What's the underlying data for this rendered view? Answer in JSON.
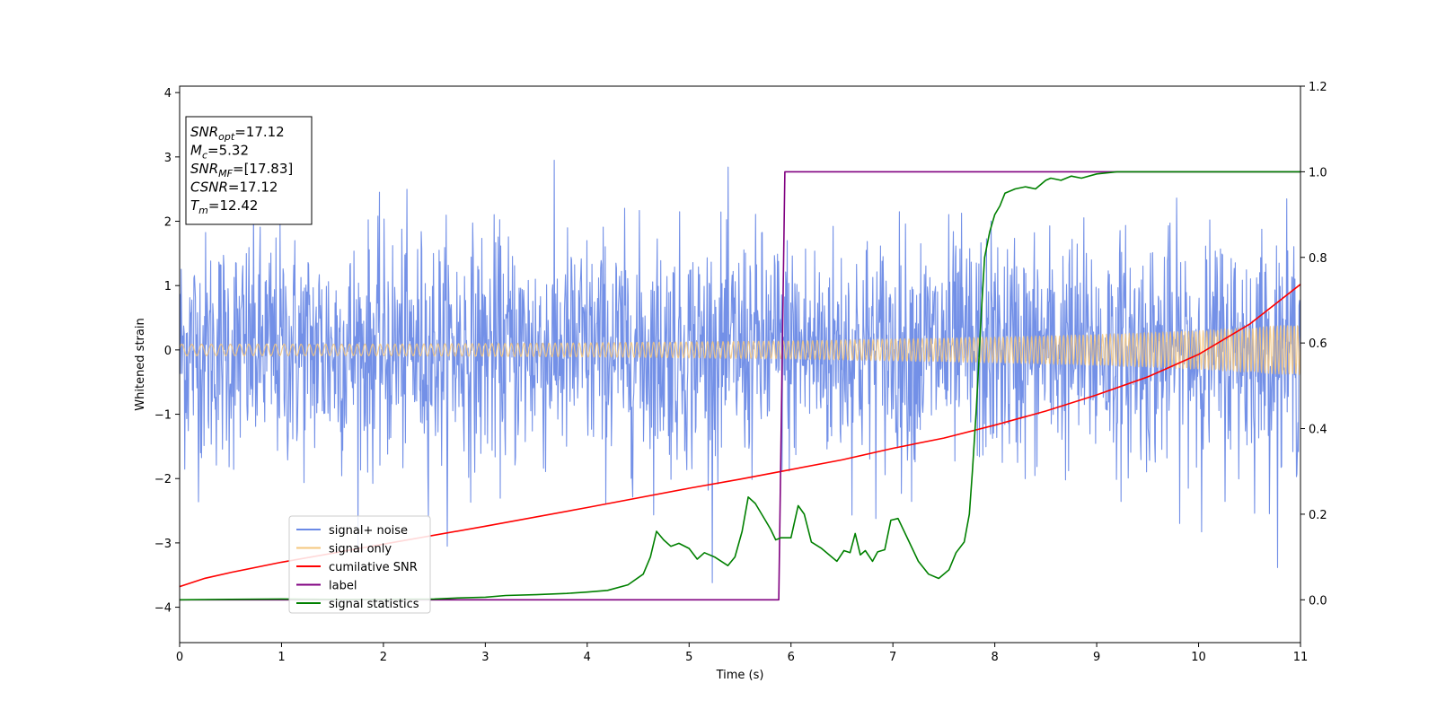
{
  "chart_data": {
    "type": "line",
    "title": "",
    "xlabel": "Time (s)",
    "ylabel": "Whitened strain",
    "xlim": [
      0,
      11
    ],
    "ylim": [
      -4.55,
      4.1
    ],
    "y2lim": [
      -0.1,
      1.2
    ],
    "x_ticks": [
      0,
      1,
      2,
      3,
      4,
      5,
      6,
      7,
      8,
      9,
      10,
      11
    ],
    "x_tick_labels": [
      "0",
      "1",
      "2",
      "3",
      "4",
      "5",
      "6",
      "7",
      "8",
      "9",
      "10",
      "11"
    ],
    "y_ticks": [
      -4,
      -3,
      -2,
      -1,
      0,
      1,
      2,
      3,
      4
    ],
    "y_tick_labels": [
      "−4",
      "−3",
      "−2",
      "−1",
      "0",
      "1",
      "2",
      "3",
      "4"
    ],
    "y2_ticks": [
      0.0,
      0.2,
      0.4,
      0.6,
      0.8,
      1.0,
      1.2
    ],
    "y2_tick_labels": [
      "0.0",
      "0.2",
      "0.4",
      "0.6",
      "0.8",
      "1.0",
      "1.2"
    ],
    "grid": false,
    "legend_position": "lower-left",
    "annotation": {
      "lines": [
        {
          "base": "SNR",
          "sub": "opt",
          "rest": "=17.12"
        },
        {
          "base": "M",
          "sub": "c",
          "rest": "=5.32"
        },
        {
          "base": "SNR",
          "sub": "MF",
          "rest": "=[17.83]"
        },
        {
          "base": "CSNR",
          "sub": "",
          "rest": "=17.12"
        },
        {
          "base": "T",
          "sub": "m",
          "rest": "=12.42"
        }
      ]
    },
    "series": [
      {
        "name": "signal+ noise",
        "color": "#6b8ae6",
        "axis": "left",
        "noise": {
          "std": 0.9,
          "max_amplitude": 4.1,
          "n_samples": 2200
        }
      },
      {
        "name": "signal only",
        "color": "#f5c77e",
        "axis": "left",
        "chirp": {
          "envelope": [
            [
              0,
              0.09
            ],
            [
              2,
              0.09
            ],
            [
              4,
              0.11
            ],
            [
              6,
              0.14
            ],
            [
              8,
              0.2
            ],
            [
              9,
              0.24
            ],
            [
              10,
              0.3
            ],
            [
              11,
              0.4
            ]
          ],
          "freq_start": 10,
          "freq_end": 30
        }
      },
      {
        "name": "cumilative SNR",
        "color": "#ff0000",
        "axis": "left",
        "x": [
          0,
          0.25,
          0.5,
          1,
          1.5,
          2,
          3,
          4,
          5,
          5.5,
          6,
          6.5,
          7,
          7.5,
          8,
          8.5,
          9,
          9.5,
          10,
          10.5,
          11
        ],
        "y": [
          -3.68,
          -3.55,
          -3.46,
          -3.3,
          -3.16,
          -3.02,
          -2.74,
          -2.45,
          -2.15,
          -2.01,
          -1.86,
          -1.71,
          -1.53,
          -1.37,
          -1.17,
          -0.95,
          -0.7,
          -0.42,
          -0.07,
          0.4,
          1.02
        ]
      },
      {
        "name": "label",
        "color": "#800080",
        "axis": "right",
        "x": [
          0,
          5.88,
          5.94,
          11
        ],
        "y": [
          0,
          0,
          1,
          1
        ]
      },
      {
        "name": "signal statistics",
        "color": "#008000",
        "axis": "right",
        "x": [
          0,
          0.5,
          1,
          1.5,
          2,
          2.5,
          2.7,
          3,
          3.2,
          3.5,
          3.8,
          4.0,
          4.2,
          4.4,
          4.55,
          4.62,
          4.68,
          4.75,
          4.82,
          4.9,
          5.0,
          5.08,
          5.15,
          5.25,
          5.38,
          5.45,
          5.52,
          5.58,
          5.65,
          5.75,
          5.8,
          5.85,
          5.9,
          6.0,
          6.07,
          6.13,
          6.2,
          6.3,
          6.4,
          6.45,
          6.52,
          6.58,
          6.63,
          6.68,
          6.73,
          6.8,
          6.85,
          6.92,
          6.98,
          7.05,
          7.15,
          7.25,
          7.35,
          7.45,
          7.55,
          7.62,
          7.7,
          7.75,
          7.78,
          7.82,
          7.87,
          7.9,
          7.95,
          8.0,
          8.05,
          8.1,
          8.2,
          8.3,
          8.4,
          8.5,
          8.55,
          8.65,
          8.75,
          8.85,
          9.0,
          9.2,
          9.5,
          10,
          10.5,
          11
        ],
        "y": [
          0,
          0.001,
          0.002,
          0.001,
          0.001,
          0.002,
          0.004,
          0.006,
          0.01,
          0.012,
          0.015,
          0.018,
          0.022,
          0.035,
          0.06,
          0.1,
          0.16,
          0.14,
          0.125,
          0.132,
          0.12,
          0.095,
          0.11,
          0.1,
          0.08,
          0.1,
          0.16,
          0.24,
          0.225,
          0.185,
          0.165,
          0.14,
          0.145,
          0.145,
          0.22,
          0.2,
          0.135,
          0.12,
          0.1,
          0.09,
          0.115,
          0.11,
          0.155,
          0.105,
          0.115,
          0.09,
          0.112,
          0.117,
          0.186,
          0.19,
          0.14,
          0.09,
          0.06,
          0.05,
          0.07,
          0.11,
          0.135,
          0.2,
          0.3,
          0.45,
          0.68,
          0.8,
          0.86,
          0.9,
          0.92,
          0.95,
          0.96,
          0.965,
          0.96,
          0.98,
          0.985,
          0.98,
          0.99,
          0.985,
          0.995,
          1.0,
          1.0,
          1.0,
          1.0,
          1.0
        ]
      }
    ]
  }
}
